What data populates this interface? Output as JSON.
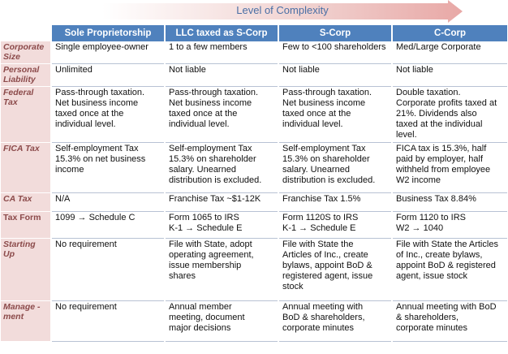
{
  "header": {
    "complexity_label": "Level of Complexity",
    "columns": [
      "Sole Proprietorship",
      "LLC taxed as S-Corp",
      "S-Corp",
      "C-Corp"
    ]
  },
  "rows": [
    {
      "label": "Corporate Size",
      "italic": true,
      "cells": [
        [
          "Single employee-owner"
        ],
        [
          "1 to a few members"
        ],
        [
          "Few to <100 shareholders"
        ],
        [
          "Med/Large Corporate"
        ]
      ]
    },
    {
      "label": "Personal Liability",
      "italic": true,
      "cells": [
        [
          "Unlimited"
        ],
        [
          "Not liable"
        ],
        [
          "Not liable"
        ],
        [
          "Not liable"
        ]
      ]
    },
    {
      "label": "Federal Tax",
      "italic": true,
      "cells": [
        [
          "Pass-through taxation.",
          "Net business income",
          "taxed once at the",
          "individual level."
        ],
        [
          "Pass-through taxation.",
          "Net business income",
          "taxed once at the",
          "individual level."
        ],
        [
          "Pass-through taxation.",
          "Net business income",
          "taxed once at the",
          "individual level."
        ],
        [
          "Double taxation.",
          "Corporate profits taxed at",
          "21%. Dividends also",
          "taxed at the individual",
          "level."
        ]
      ]
    },
    {
      "label": "FICA Tax",
      "italic": true,
      "cells": [
        [
          "Self-employment Tax",
          "15.3% on net business",
          "income"
        ],
        [
          "Self-employment Tax",
          "15.3% on shareholder",
          "salary. Unearned",
          "distribution is excluded."
        ],
        [
          "Self-employment Tax",
          "15.3% on shareholder",
          "salary. Unearned",
          "distribution is excluded."
        ],
        [
          "FICA tax is 15.3%, half",
          "paid by employer, half",
          "withheld from employee",
          "W2 income"
        ]
      ]
    },
    {
      "label": "CA Tax",
      "italic": true,
      "cells": [
        [
          "N/A"
        ],
        [
          "Franchise Tax ~$1-12K"
        ],
        [
          "Franchise Tax 1.5%"
        ],
        [
          "Business Tax 8.84%"
        ]
      ]
    },
    {
      "label": "Tax Form",
      "italic": false,
      "cells": [
        [
          "1099 → Schedule C"
        ],
        [
          "Form 1065 to IRS",
          "K-1 → Schedule E"
        ],
        [
          "Form 1120S to IRS",
          "K-1 → Schedule E"
        ],
        [
          "Form 1120 to IRS",
          "W2 → 1040"
        ]
      ]
    },
    {
      "label": "Starting Up",
      "italic": true,
      "cells": [
        [
          "No requirement"
        ],
        [
          "File with State, adopt",
          "operating agreement,",
          "issue membership",
          "shares"
        ],
        [
          "File with State the",
          "Articles of Inc., create",
          "bylaws, appoint  BoD &",
          "registered agent, issue",
          "stock"
        ],
        [
          "File with State the Articles",
          "of Inc., create bylaws,",
          "appoint  BoD & registered",
          "agent, issue stock"
        ]
      ]
    },
    {
      "label": "Manage -ment",
      "italic": true,
      "cells": [
        [
          "No requirement"
        ],
        [
          "Annual member",
          "meeting, document",
          "major decisions"
        ],
        [
          "Annual meeting with",
          "BoD & shareholders,",
          "corporate minutes"
        ],
        [
          "Annual meeting with BoD",
          "& shareholders,",
          "corporate minutes"
        ]
      ]
    }
  ],
  "colors": {
    "header_bg": "#4f81bd",
    "row_label_bg": "#f2dcdb",
    "row_label_text": "#8b4a4a",
    "arrow": "#e6b9b8"
  }
}
